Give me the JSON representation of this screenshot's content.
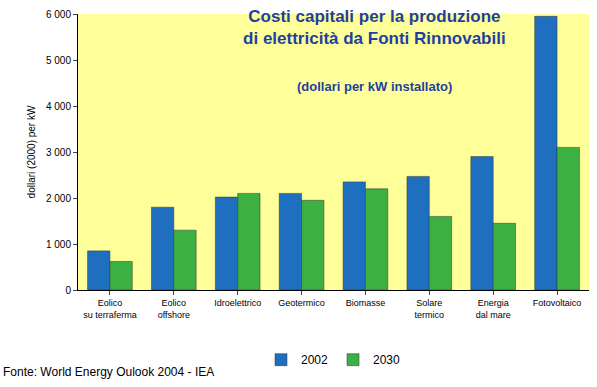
{
  "chart_data": {
    "type": "bar",
    "title": "Costi capitali per la produzione di elettricità da Fonti Rinnovabili",
    "subtitle": "(dollari per kW installato)",
    "y_label": "dollari (2000) per kW",
    "source": "Fonte: World Energy Oulook 2004 - IEA",
    "categories": [
      "Eolico su terraferma",
      "Eolico offshore",
      "Idroelettrico",
      "Geotermico",
      "Biomasse",
      "Solare termico",
      "Energia dal mare",
      "Fotovoltaico"
    ],
    "series": [
      {
        "name": "2002",
        "color": "#1f6fc0",
        "values": [
          850,
          1800,
          2020,
          2100,
          2350,
          2470,
          2900,
          5950
        ]
      },
      {
        "name": "2030",
        "color": "#3cb043",
        "values": [
          620,
          1300,
          2100,
          1950,
          2200,
          1600,
          1450,
          3100
        ]
      }
    ],
    "ylim": [
      0,
      6000
    ],
    "yticks": [
      0,
      {
        "value": 1000,
        "label": "1 000"
      },
      {
        "value": 2000,
        "label": "2 000"
      },
      {
        "value": 3000,
        "label": "3 000"
      },
      {
        "value": 4000,
        "label": "4 000"
      },
      {
        "value": 5000,
        "label": "5 000"
      },
      {
        "value": 6000,
        "label": "6 000"
      }
    ],
    "grid": false,
    "legend": "bottom"
  }
}
